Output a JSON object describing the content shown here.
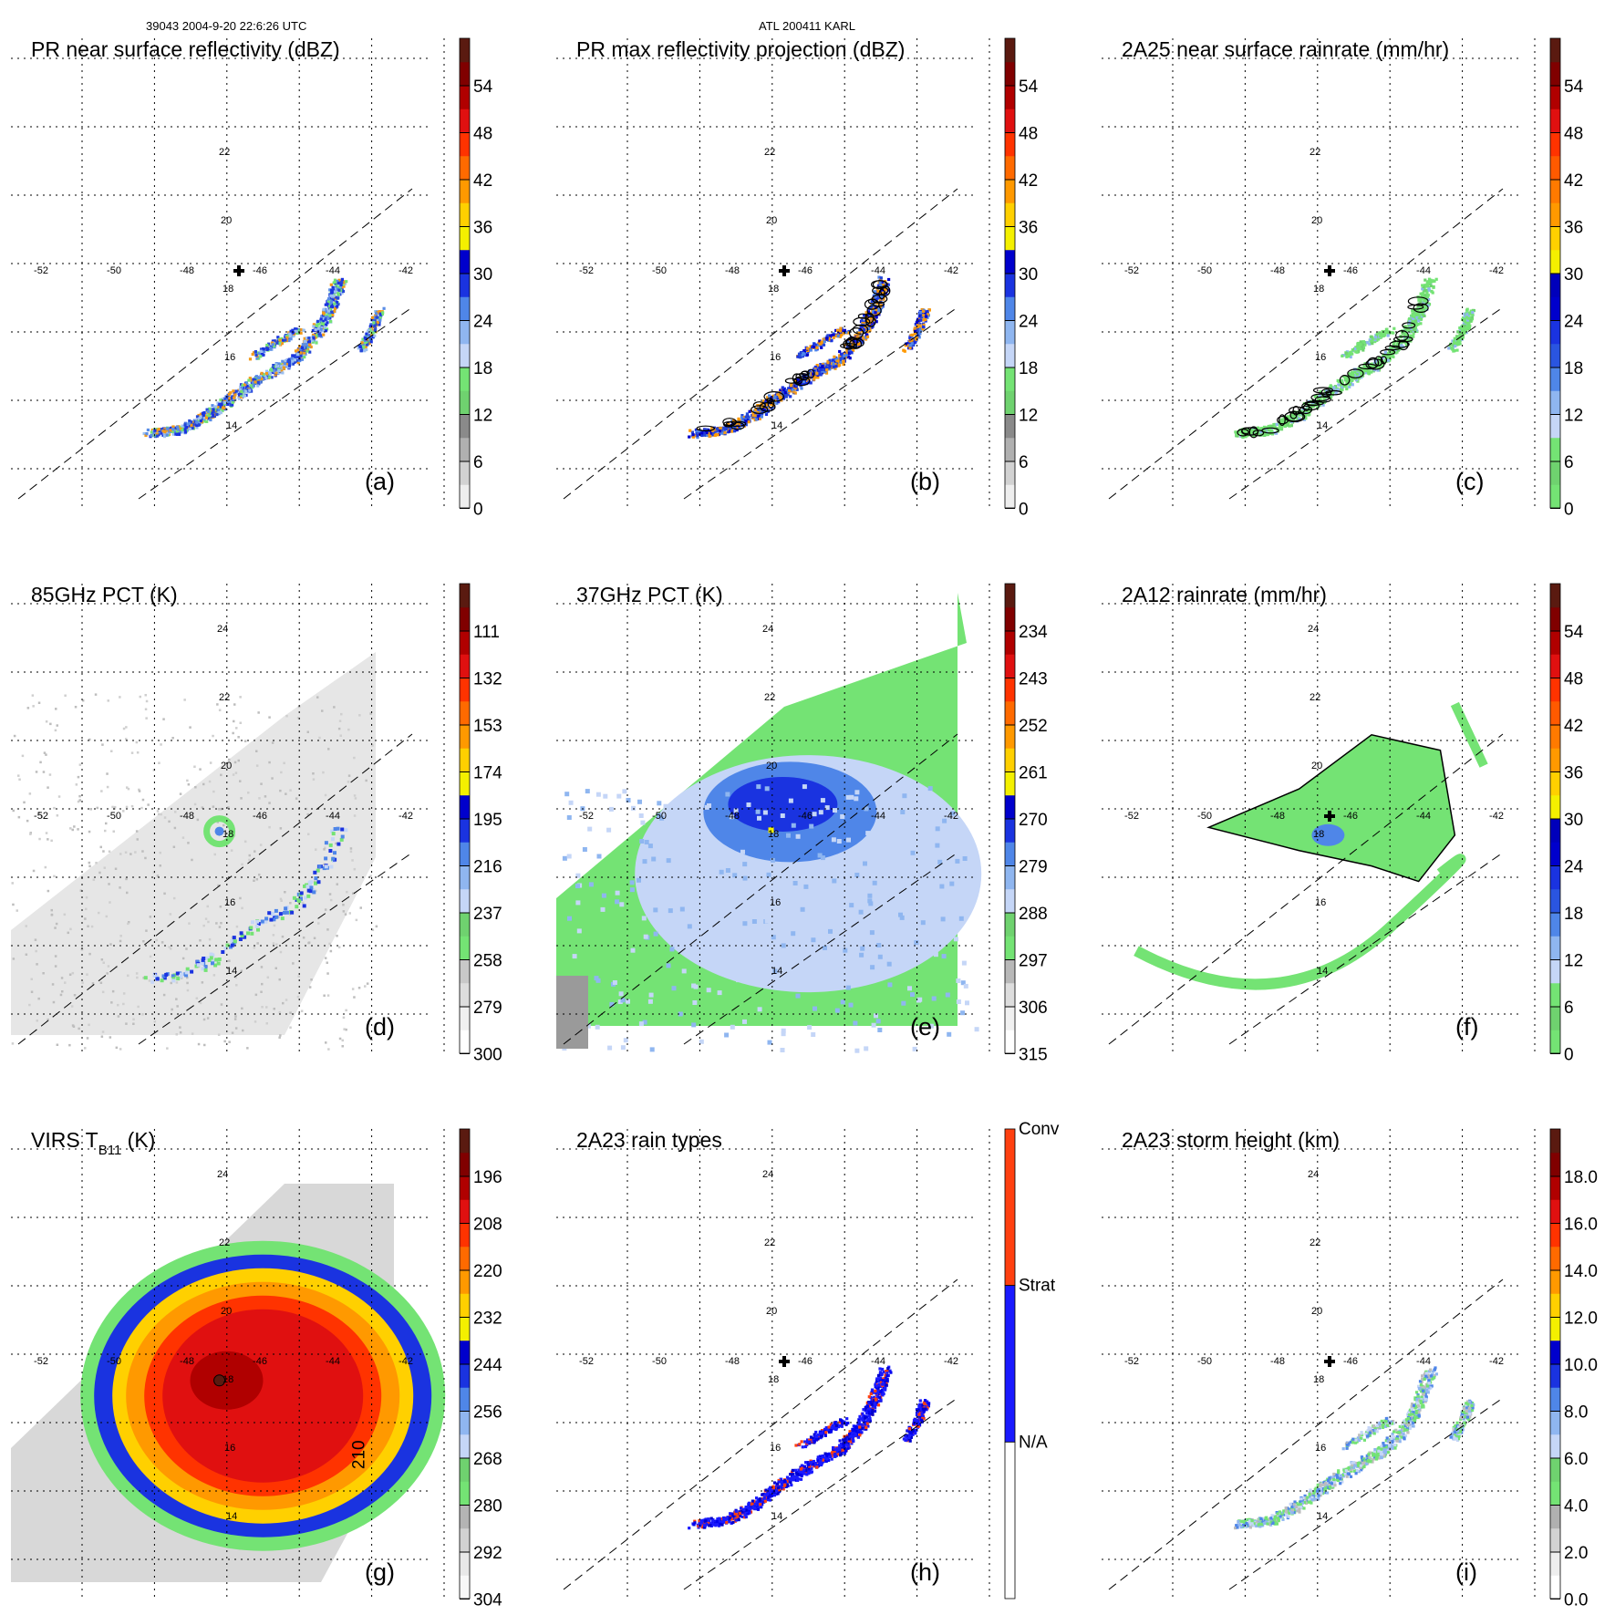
{
  "header": {
    "left": "39043 2004-9-20 22:6:26 UTC",
    "center": "ATL 200411 KARL"
  },
  "colors": {
    "grid": "#000000",
    "swath": "#000000"
  },
  "chart_data": [
    {
      "id": "a",
      "label": "(a)",
      "type": "heatmap",
      "title": "PR near surface reflectivity (dBZ)",
      "title_sub": "",
      "colorbar": {
        "ticks": [
          "54",
          "48",
          "42",
          "36",
          "30",
          "24",
          "18",
          "12",
          "6",
          "0"
        ],
        "colors": [
          "#eeeeee",
          "#d2d2d2",
          "#b0b0b0",
          "#8a8a8a",
          "#6fd26f",
          "#74e374",
          "#c5d6f7",
          "#8fb6f0",
          "#4f86e8",
          "#1a33e0",
          "#0000cc",
          "#f4f000",
          "#ffd000",
          "#ff9900",
          "#ff6a00",
          "#ff3300",
          "#e01010",
          "#b00000",
          "#800000",
          "#5a1a10"
        ]
      },
      "lon_ticks": [
        "-52",
        "-50",
        "-48",
        "-46",
        "-44",
        "-42"
      ],
      "lat_ticks": [
        "14",
        "16",
        "18",
        "20",
        "22"
      ],
      "marker": true,
      "swath": true,
      "fill": "pr",
      "palette": [
        "#5a8de6",
        "#2447d8",
        "#9cc0f0",
        "#f29a1a",
        "#74e374",
        "#1a33e0"
      ]
    },
    {
      "id": "b",
      "label": "(b)",
      "type": "heatmap",
      "title": "PR max reflectivity projection (dBZ)",
      "title_sub": "",
      "colorbar": {
        "ticks": [
          "54",
          "48",
          "42",
          "36",
          "30",
          "24",
          "18",
          "12",
          "6",
          "0"
        ],
        "colors": [
          "#eeeeee",
          "#d2d2d2",
          "#b0b0b0",
          "#8a8a8a",
          "#6fd26f",
          "#74e374",
          "#c5d6f7",
          "#8fb6f0",
          "#4f86e8",
          "#1a33e0",
          "#0000cc",
          "#f4f000",
          "#ffd000",
          "#ff9900",
          "#ff6a00",
          "#ff3300",
          "#e01010",
          "#b00000",
          "#800000",
          "#5a1a10"
        ]
      },
      "lon_ticks": [
        "-52",
        "-50",
        "-48",
        "-46",
        "-44",
        "-42"
      ],
      "lat_ticks": [
        "14",
        "16",
        "18",
        "20",
        "22"
      ],
      "marker": true,
      "swath": true,
      "fill": "pr",
      "palette": [
        "#1a33e0",
        "#2447d8",
        "#f29a1a",
        "#4f86e8",
        "#ff9900",
        "#0000cc"
      ]
    },
    {
      "id": "c",
      "label": "(c)",
      "type": "heatmap",
      "title": "2A25 near surface rainrate (mm/hr)",
      "title_sub": "",
      "colorbar": {
        "ticks": [
          "54",
          "48",
          "42",
          "36",
          "30",
          "24",
          "18",
          "12",
          "6",
          "0"
        ],
        "colors": [
          "#74e374",
          "#6fd26f",
          "#74e374",
          "#c5d6f7",
          "#8fb6f0",
          "#4f86e8",
          "#2a55e0",
          "#1a33e0",
          "#0000cc",
          "#0000bb",
          "#f4f000",
          "#ffd000",
          "#ff9900",
          "#ff7a00",
          "#ff5a00",
          "#ff3300",
          "#e01010",
          "#b00000",
          "#800000",
          "#5a1a10"
        ]
      },
      "lon_ticks": [
        "-52",
        "-50",
        "-48",
        "-46",
        "-44",
        "-42"
      ],
      "lat_ticks": [
        "14",
        "16",
        "18",
        "20",
        "22"
      ],
      "marker": true,
      "swath": true,
      "fill": "pr",
      "palette": [
        "#74e374",
        "#6fd26f",
        "#74e374",
        "#8fb6f0",
        "#74e374",
        "#74e374"
      ]
    },
    {
      "id": "d",
      "label": "(d)",
      "type": "heatmap",
      "title": "85GHz PCT (K)",
      "title_sub": "",
      "colorbar": {
        "ticks": [
          "111",
          "132",
          "153",
          "174",
          "195",
          "216",
          "237",
          "258",
          "279",
          "300"
        ],
        "colors": [
          "#ffffff",
          "#f0f0f0",
          "#dddddd",
          "#c8c8c8",
          "#74e374",
          "#6fd26f",
          "#c5d6f7",
          "#8fb6f0",
          "#4f86e8",
          "#1a33e0",
          "#0000cc",
          "#f4f000",
          "#ffd000",
          "#ff9900",
          "#ff6a00",
          "#ff3300",
          "#e01010",
          "#b00000",
          "#800000",
          "#5a1a10"
        ]
      },
      "lon_ticks": [
        "-52",
        "-50",
        "-48",
        "-46",
        "-44",
        "-42"
      ],
      "lat_ticks": [
        "14",
        "16",
        "18",
        "20",
        "22",
        "24"
      ],
      "marker": false,
      "swath": true,
      "fill": "pct85",
      "palette": [
        "#74e374",
        "#4f86e8",
        "#1a33e0",
        "#c5d6f7"
      ]
    },
    {
      "id": "e",
      "label": "(e)",
      "type": "heatmap",
      "title": "37GHz PCT (K)",
      "title_sub": "",
      "colorbar": {
        "ticks": [
          "234",
          "243",
          "252",
          "261",
          "270",
          "279",
          "288",
          "297",
          "306",
          "315"
        ],
        "colors": [
          "#ffffff",
          "#f0f0f0",
          "#dddddd",
          "#b8b8b8",
          "#74e374",
          "#6fd26f",
          "#c5d6f7",
          "#8fb6f0",
          "#4f86e8",
          "#1a33e0",
          "#0000cc",
          "#f4f000",
          "#ffd000",
          "#ff9900",
          "#ff6a00",
          "#ff3300",
          "#e01010",
          "#b00000",
          "#800000",
          "#5a1a10"
        ]
      },
      "lon_ticks": [
        "-52",
        "-50",
        "-48",
        "-46",
        "-44",
        "-42"
      ],
      "lat_ticks": [
        "14",
        "16",
        "18",
        "20",
        "22",
        "24"
      ],
      "marker": false,
      "swath": true,
      "fill": "pct37",
      "palette": [
        "#74e374",
        "#c5d6f7",
        "#8fb6f0",
        "#4f86e8",
        "#1a33e0"
      ]
    },
    {
      "id": "f",
      "label": "(f)",
      "type": "heatmap",
      "title": "2A12 rainrate (mm/hr)",
      "title_sub": "",
      "colorbar": {
        "ticks": [
          "54",
          "48",
          "42",
          "36",
          "30",
          "24",
          "18",
          "12",
          "6",
          "0"
        ],
        "colors": [
          "#74e374",
          "#6fd26f",
          "#74e374",
          "#c5d6f7",
          "#8fb6f0",
          "#4f86e8",
          "#2a55e0",
          "#1a33e0",
          "#0000cc",
          "#0000bb",
          "#f4f000",
          "#ffd000",
          "#ff9900",
          "#ff7a00",
          "#ff5a00",
          "#ff3300",
          "#e01010",
          "#b00000",
          "#800000",
          "#5a1a10"
        ]
      },
      "lon_ticks": [
        "-52",
        "-50",
        "-48",
        "-46",
        "-44",
        "-42"
      ],
      "lat_ticks": [
        "14",
        "16",
        "18",
        "20",
        "22",
        "24"
      ],
      "marker": true,
      "swath": true,
      "fill": "rr12",
      "palette": [
        "#74e374",
        "#8fb6f0",
        "#4f86e8"
      ]
    },
    {
      "id": "g",
      "label": "(g)",
      "type": "heatmap",
      "title": "VIRS T",
      "title_sub": "B11",
      "title_after": " (K)",
      "colorbar": {
        "ticks": [
          "196",
          "208",
          "220",
          "232",
          "244",
          "256",
          "268",
          "280",
          "292",
          "304"
        ],
        "colors": [
          "#f8f8f8",
          "#e8e8e8",
          "#d2d2d2",
          "#b4b4b4",
          "#74e374",
          "#6fd26f",
          "#c5d6f7",
          "#8fb6f0",
          "#4f86e8",
          "#1a33e0",
          "#0000cc",
          "#f4f000",
          "#ffd000",
          "#ff9900",
          "#ff6a00",
          "#ff3300",
          "#e01010",
          "#b00000",
          "#800000",
          "#5a1a10"
        ]
      },
      "lon_ticks": [
        "-52",
        "-50",
        "-48",
        "-46",
        "-44",
        "-42"
      ],
      "lat_ticks": [
        "14",
        "16",
        "18",
        "20",
        "22",
        "24"
      ],
      "marker": false,
      "swath": false,
      "contour_label": "210",
      "fill": "virs",
      "palette": [
        "#e01010",
        "#ff3300",
        "#ff9900",
        "#ffd000",
        "#4f86e8",
        "#1a33e0",
        "#74e374",
        "#c5d6f7"
      ]
    },
    {
      "id": "h",
      "label": "(h)",
      "type": "heatmap",
      "title": "2A23 rain types",
      "title_sub": "",
      "colorbar": {
        "ticks": [
          "Conv",
          "Strat",
          "N/A"
        ],
        "categorical": true,
        "colors": [
          "#ffffff",
          "#1a1aff",
          "#ff4010"
        ]
      },
      "lon_ticks": [
        "-52",
        "-50",
        "-48",
        "-46",
        "-44",
        "-42"
      ],
      "lat_ticks": [
        "14",
        "16",
        "18",
        "20",
        "22",
        "24"
      ],
      "marker": true,
      "swath": true,
      "fill": "pr",
      "palette": [
        "#1a1aff",
        "#0000ee",
        "#1a1aff",
        "#ff4010",
        "#1a1aff",
        "#0000cc"
      ]
    },
    {
      "id": "i",
      "label": "(i)",
      "type": "heatmap",
      "title": "2A23 storm height (km)",
      "title_sub": "",
      "colorbar": {
        "ticks": [
          "18.0",
          "16.0",
          "14.0",
          "12.0",
          "10.0",
          "8.0",
          "6.0",
          "4.0",
          "2.0",
          "0.0"
        ],
        "colors": [
          "#ffffff",
          "#eeeeee",
          "#d2d2d2",
          "#b0b0b0",
          "#74e374",
          "#6fd26f",
          "#c5d6f7",
          "#8fb6f0",
          "#4f86e8",
          "#1a33e0",
          "#0000cc",
          "#f4f000",
          "#ffd000",
          "#ff9900",
          "#ff6a00",
          "#ff3300",
          "#e01010",
          "#b00000",
          "#800000",
          "#5a1a10"
        ]
      },
      "lon_ticks": [
        "-52",
        "-50",
        "-48",
        "-46",
        "-44",
        "-42"
      ],
      "lat_ticks": [
        "14",
        "16",
        "18",
        "20",
        "22",
        "24"
      ],
      "marker": true,
      "swath": true,
      "fill": "pr",
      "palette": [
        "#74e374",
        "#8fb6f0",
        "#bdbdbd",
        "#4f86e8",
        "#74e374",
        "#c5d6f7"
      ]
    }
  ]
}
